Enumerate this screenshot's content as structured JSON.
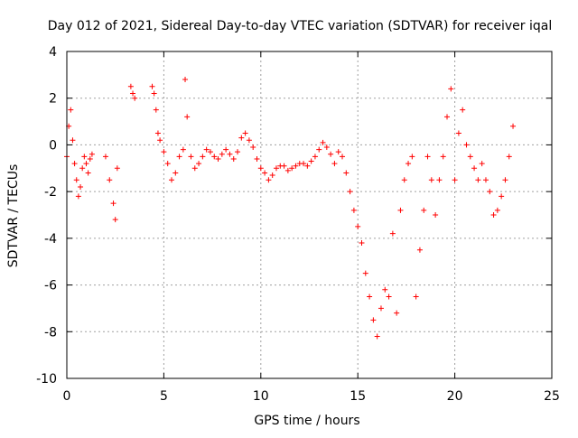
{
  "chart_data": {
    "type": "scatter",
    "title": "Day 012 of 2021, Sidereal Day-to-day VTEC variation (SDTVAR) for receiver iqal",
    "xlabel": "GPS time / hours",
    "ylabel": "SDTVAR / TECUs",
    "xlim": [
      0,
      25
    ],
    "ylim": [
      -10,
      4
    ],
    "xticks": [
      0,
      5,
      10,
      15,
      20,
      25
    ],
    "yticks": [
      -10,
      -8,
      -6,
      -4,
      -2,
      0,
      2,
      4
    ],
    "xtick_labels": [
      "0",
      "5",
      "10",
      "15",
      "20",
      "25"
    ],
    "ytick_labels": [
      "-10",
      "-8",
      "-6",
      "-4",
      "-2",
      "0",
      "2",
      "4"
    ],
    "grid": true,
    "marker": "+",
    "color": "#ff0000",
    "series": [
      {
        "name": "SDTVAR",
        "x": [
          0.0,
          0.1,
          0.2,
          0.3,
          0.4,
          0.5,
          0.6,
          0.7,
          0.8,
          0.9,
          1.0,
          1.1,
          1.2,
          1.3,
          2.0,
          2.2,
          2.4,
          2.5,
          2.6,
          3.3,
          3.4,
          3.5,
          4.4,
          4.5,
          4.6,
          4.7,
          4.8,
          5.0,
          5.2,
          5.4,
          5.6,
          5.8,
          6.0,
          6.1,
          6.2,
          6.4,
          6.6,
          6.8,
          7.0,
          7.2,
          7.4,
          7.6,
          7.8,
          8.0,
          8.2,
          8.4,
          8.6,
          8.8,
          9.0,
          9.2,
          9.4,
          9.6,
          9.8,
          10.0,
          10.2,
          10.4,
          10.6,
          10.8,
          11.0,
          11.2,
          11.4,
          11.6,
          11.8,
          12.0,
          12.2,
          12.4,
          12.6,
          12.8,
          13.0,
          13.2,
          13.4,
          13.6,
          13.8,
          14.0,
          14.2,
          14.4,
          14.6,
          14.8,
          15.0,
          15.2,
          15.4,
          15.6,
          15.8,
          16.0,
          16.2,
          16.4,
          16.6,
          16.8,
          17.0,
          17.2,
          17.4,
          17.6,
          17.8,
          18.0,
          18.2,
          18.4,
          18.6,
          18.8,
          19.0,
          19.2,
          19.4,
          19.6,
          19.8,
          20.0,
          20.2,
          20.4,
          20.6,
          20.8,
          21.0,
          21.2,
          21.4,
          21.6,
          21.8,
          22.0,
          22.2,
          22.4,
          22.6,
          22.8,
          23.0
        ],
        "y": [
          -0.5,
          0.8,
          1.5,
          0.2,
          -0.8,
          -1.5,
          -2.2,
          -1.8,
          -1.0,
          -0.5,
          -0.8,
          -1.2,
          -0.6,
          -0.4,
          -0.5,
          -1.5,
          -2.5,
          -3.2,
          -1.0,
          2.5,
          2.2,
          2.0,
          2.5,
          2.2,
          1.5,
          0.5,
          0.2,
          -0.3,
          -0.8,
          -1.5,
          -1.2,
          -0.5,
          -0.2,
          2.8,
          1.2,
          -0.5,
          -1.0,
          -0.8,
          -0.5,
          -0.2,
          -0.3,
          -0.5,
          -0.6,
          -0.4,
          -0.2,
          -0.4,
          -0.6,
          -0.3,
          0.3,
          0.5,
          0.2,
          -0.1,
          -0.6,
          -1.0,
          -1.2,
          -1.5,
          -1.3,
          -1.0,
          -0.9,
          -0.9,
          -1.1,
          -1.0,
          -0.9,
          -0.8,
          -0.8,
          -0.9,
          -0.7,
          -0.5,
          -0.2,
          0.1,
          -0.1,
          -0.4,
          -0.8,
          -0.3,
          -0.5,
          -1.2,
          -2.0,
          -2.8,
          -3.5,
          -4.2,
          -5.5,
          -6.5,
          -7.5,
          -8.2,
          -7.0,
          -6.2,
          -6.5,
          -3.8,
          -7.2,
          -2.8,
          -1.5,
          -0.8,
          -0.5,
          -6.5,
          -4.5,
          -2.8,
          -0.5,
          -1.5,
          -3.0,
          -1.5,
          -0.5,
          1.2,
          2.4,
          -1.5,
          0.5,
          1.5,
          0.0,
          -0.5,
          -1.0,
          -1.5,
          -0.8,
          -1.5,
          -2.0,
          -3.0,
          -2.8,
          -2.2,
          -1.5,
          -0.5,
          0.8
        ]
      }
    ]
  }
}
